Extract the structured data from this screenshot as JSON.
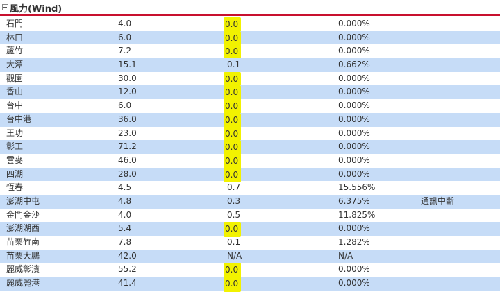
{
  "section": {
    "toggle_icon": "collapse-minus-icon",
    "title": "風力(Wind)",
    "accent_color": "#c8102e",
    "alt_row_color": "#c6dcf7",
    "highlight_color": "#f2f200"
  },
  "rows": [
    {
      "name": "石門",
      "wind": "4.0",
      "value": "0.0",
      "percent": "0.000%",
      "note": "",
      "highlight": true
    },
    {
      "name": "林口",
      "wind": "6.0",
      "value": "0.0",
      "percent": "0.000%",
      "note": "",
      "highlight": true
    },
    {
      "name": "蘆竹",
      "wind": "7.2",
      "value": "0.0",
      "percent": "0.000%",
      "note": "",
      "highlight": true
    },
    {
      "name": "大潭",
      "wind": "15.1",
      "value": "0.1",
      "percent": "0.662%",
      "note": "",
      "highlight": false
    },
    {
      "name": "觀園",
      "wind": "30.0",
      "value": "0.0",
      "percent": "0.000%",
      "note": "",
      "highlight": true
    },
    {
      "name": "香山",
      "wind": "12.0",
      "value": "0.0",
      "percent": "0.000%",
      "note": "",
      "highlight": true
    },
    {
      "name": "台中",
      "wind": "6.0",
      "value": "0.0",
      "percent": "0.000%",
      "note": "",
      "highlight": true
    },
    {
      "name": "台中港",
      "wind": "36.0",
      "value": "0.0",
      "percent": "0.000%",
      "note": "",
      "highlight": true
    },
    {
      "name": "王功",
      "wind": "23.0",
      "value": "0.0",
      "percent": "0.000%",
      "note": "",
      "highlight": true
    },
    {
      "name": "彰工",
      "wind": "71.2",
      "value": "0.0",
      "percent": "0.000%",
      "note": "",
      "highlight": true
    },
    {
      "name": "雲麥",
      "wind": "46.0",
      "value": "0.0",
      "percent": "0.000%",
      "note": "",
      "highlight": true
    },
    {
      "name": "四湖",
      "wind": "28.0",
      "value": "0.0",
      "percent": "0.000%",
      "note": "",
      "highlight": true
    },
    {
      "name": "恆春",
      "wind": "4.5",
      "value": "0.7",
      "percent": "15.556%",
      "note": "",
      "highlight": false
    },
    {
      "name": "澎湖中屯",
      "wind": "4.8",
      "value": "0.3",
      "percent": "6.375%",
      "note": "通訊中斷",
      "highlight": false
    },
    {
      "name": "金門金沙",
      "wind": "4.0",
      "value": "0.5",
      "percent": "11.825%",
      "note": "",
      "highlight": false
    },
    {
      "name": "澎湖湖西",
      "wind": "5.4",
      "value": "0.0",
      "percent": "0.000%",
      "note": "",
      "highlight": true
    },
    {
      "name": "苗栗竹南",
      "wind": "7.8",
      "value": "0.1",
      "percent": "1.282%",
      "note": "",
      "highlight": false
    },
    {
      "name": "苗栗大鵬",
      "wind": "42.0",
      "value": "N/A",
      "percent": "N/A",
      "note": "",
      "highlight": false
    },
    {
      "name": "麗威彰濱",
      "wind": "55.2",
      "value": "0.0",
      "percent": "0.000%",
      "note": "",
      "highlight": true
    },
    {
      "name": "麗威麗港",
      "wind": "41.4",
      "value": "0.0",
      "percent": "0.000%",
      "note": "",
      "highlight": true
    }
  ]
}
